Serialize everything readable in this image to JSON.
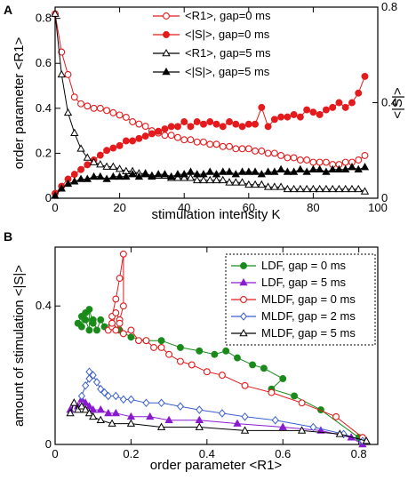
{
  "panels": {
    "a_label": "A",
    "b_label": "B"
  },
  "chart_data": [
    {
      "type": "line",
      "xlabel": "stimulation intensity K",
      "ylabel": "order parameter <R1>",
      "y2label": "<|S|>",
      "xlim": [
        0,
        100
      ],
      "ylim": [
        0,
        0.85
      ],
      "y2lim": [
        0,
        0.8
      ],
      "xticks": [
        "0",
        "20",
        "40",
        "60",
        "80",
        "100"
      ],
      "yticks": [
        "0",
        "0.2",
        "0.4",
        "0.6",
        "0.8"
      ],
      "y2ticks": [
        "0",
        "0.4",
        "0.8"
      ],
      "legend_position": "top-right",
      "series": [
        {
          "name": "<R1>, gap=0 ms",
          "axis": "left",
          "color": "#e41a1c",
          "marker": "open-circle",
          "x": [
            0,
            2,
            4,
            6,
            8,
            10,
            12,
            14,
            16,
            18,
            20,
            22,
            24,
            26,
            28,
            30,
            32,
            34,
            36,
            38,
            40,
            42,
            44,
            46,
            48,
            50,
            52,
            54,
            56,
            58,
            60,
            62,
            64,
            66,
            68,
            70,
            72,
            74,
            76,
            78,
            80,
            82,
            84,
            86,
            88,
            90,
            92,
            94,
            96
          ],
          "y": [
            0.82,
            0.65,
            0.55,
            0.45,
            0.42,
            0.41,
            0.4,
            0.4,
            0.39,
            0.38,
            0.37,
            0.36,
            0.34,
            0.33,
            0.32,
            0.3,
            0.29,
            0.28,
            0.28,
            0.27,
            0.26,
            0.26,
            0.25,
            0.25,
            0.24,
            0.24,
            0.23,
            0.23,
            0.22,
            0.22,
            0.22,
            0.21,
            0.21,
            0.2,
            0.2,
            0.19,
            0.18,
            0.18,
            0.17,
            0.17,
            0.16,
            0.16,
            0.16,
            0.15,
            0.15,
            0.16,
            0.16,
            0.17,
            0.19
          ]
        },
        {
          "name": "<|S|>, gap=0 ms",
          "axis": "right",
          "color": "#e41a1c",
          "marker": "filled-circle",
          "x": [
            0,
            2,
            4,
            6,
            8,
            10,
            12,
            14,
            16,
            18,
            20,
            22,
            24,
            26,
            28,
            30,
            32,
            34,
            36,
            38,
            40,
            42,
            44,
            46,
            48,
            50,
            52,
            54,
            56,
            58,
            60,
            62,
            64,
            66,
            68,
            70,
            72,
            74,
            76,
            78,
            80,
            82,
            84,
            86,
            88,
            90,
            92,
            94,
            96
          ],
          "y": [
            0.02,
            0.05,
            0.08,
            0.1,
            0.12,
            0.14,
            0.16,
            0.18,
            0.2,
            0.21,
            0.22,
            0.24,
            0.24,
            0.25,
            0.26,
            0.27,
            0.28,
            0.29,
            0.3,
            0.3,
            0.32,
            0.3,
            0.32,
            0.31,
            0.32,
            0.31,
            0.3,
            0.32,
            0.31,
            0.3,
            0.31,
            0.31,
            0.38,
            0.3,
            0.33,
            0.34,
            0.34,
            0.35,
            0.34,
            0.37,
            0.36,
            0.35,
            0.37,
            0.38,
            0.4,
            0.38,
            0.4,
            0.44,
            0.51
          ]
        },
        {
          "name": "<R1>, gap=5 ms",
          "axis": "left",
          "color": "#000000",
          "marker": "open-triangle",
          "x": [
            0,
            2,
            4,
            6,
            8,
            10,
            12,
            14,
            16,
            18,
            20,
            22,
            24,
            26,
            28,
            30,
            32,
            34,
            36,
            38,
            40,
            42,
            44,
            46,
            48,
            50,
            52,
            54,
            56,
            58,
            60,
            62,
            64,
            66,
            68,
            70,
            72,
            74,
            76,
            78,
            80,
            82,
            84,
            86,
            88,
            90,
            92,
            94,
            96
          ],
          "y": [
            0.82,
            0.55,
            0.38,
            0.29,
            0.22,
            0.18,
            0.16,
            0.15,
            0.14,
            0.14,
            0.13,
            0.12,
            0.12,
            0.11,
            0.11,
            0.1,
            0.1,
            0.1,
            0.09,
            0.09,
            0.09,
            0.09,
            0.08,
            0.08,
            0.08,
            0.08,
            0.08,
            0.07,
            0.07,
            0.07,
            0.06,
            0.06,
            0.06,
            0.05,
            0.05,
            0.05,
            0.04,
            0.04,
            0.04,
            0.04,
            0.04,
            0.04,
            0.04,
            0.04,
            0.04,
            0.04,
            0.04,
            0.04,
            0.03
          ]
        },
        {
          "name": "<|S|>, gap=5 ms",
          "axis": "right",
          "color": "#000000",
          "marker": "filled-triangle",
          "x": [
            0,
            2,
            4,
            6,
            8,
            10,
            12,
            14,
            16,
            18,
            20,
            22,
            24,
            26,
            28,
            30,
            32,
            34,
            36,
            38,
            40,
            42,
            44,
            46,
            48,
            50,
            52,
            54,
            56,
            58,
            60,
            62,
            64,
            66,
            68,
            70,
            72,
            74,
            76,
            78,
            80,
            82,
            84,
            86,
            88,
            90,
            92,
            94,
            96
          ],
          "y": [
            0.01,
            0.04,
            0.06,
            0.07,
            0.08,
            0.08,
            0.09,
            0.09,
            0.08,
            0.09,
            0.09,
            0.09,
            0.1,
            0.09,
            0.1,
            0.09,
            0.1,
            0.1,
            0.09,
            0.1,
            0.1,
            0.11,
            0.1,
            0.1,
            0.11,
            0.1,
            0.11,
            0.11,
            0.1,
            0.11,
            0.11,
            0.11,
            0.1,
            0.11,
            0.11,
            0.12,
            0.11,
            0.11,
            0.12,
            0.11,
            0.12,
            0.12,
            0.11,
            0.12,
            0.12,
            0.12,
            0.13,
            0.12,
            0.13
          ]
        }
      ]
    },
    {
      "type": "line",
      "xlabel": "order parameter <R1>",
      "ylabel": "amount of stimulation <|S|>",
      "xlim": [
        0,
        0.85
      ],
      "ylim": [
        0,
        0.57
      ],
      "xticks": [
        "0",
        "0.2",
        "0.4",
        "0.6",
        "0.8"
      ],
      "yticks": [
        "0",
        "0.4"
      ],
      "legend_position": "top-right",
      "series": [
        {
          "name": "LDF, gap = 0 ms",
          "color": "#1a8a1a",
          "marker": "filled-circle",
          "x": [
            0.06,
            0.07,
            0.07,
            0.08,
            0.08,
            0.09,
            0.09,
            0.1,
            0.1,
            0.11,
            0.12,
            0.13,
            0.15,
            0.17,
            0.2,
            0.24,
            0.28,
            0.33,
            0.38,
            0.42,
            0.45,
            0.48,
            0.52,
            0.55,
            0.6,
            0.57,
            0.63,
            0.7,
            0.8
          ],
          "y": [
            0.35,
            0.37,
            0.34,
            0.38,
            0.36,
            0.33,
            0.39,
            0.35,
            0.36,
            0.33,
            0.36,
            0.34,
            0.35,
            0.33,
            0.31,
            0.3,
            0.3,
            0.28,
            0.27,
            0.26,
            0.27,
            0.25,
            0.23,
            0.22,
            0.19,
            0.16,
            0.14,
            0.1,
            0.02
          ]
        },
        {
          "name": "LDF, gap = 5 ms",
          "color": "#8a1ad0",
          "marker": "filled-triangle",
          "x": [
            0.04,
            0.05,
            0.06,
            0.07,
            0.08,
            0.09,
            0.1,
            0.12,
            0.14,
            0.16,
            0.2,
            0.25,
            0.3,
            0.38,
            0.48,
            0.6,
            0.7,
            0.78,
            0.81
          ],
          "y": [
            0.1,
            0.12,
            0.11,
            0.13,
            0.12,
            0.11,
            0.1,
            0.1,
            0.09,
            0.09,
            0.08,
            0.08,
            0.07,
            0.07,
            0.06,
            0.05,
            0.04,
            0.02,
            0.0
          ]
        },
        {
          "name": "MLDF, gap = 0 ms",
          "color": "#e41a1c",
          "marker": "open-circle",
          "x": [
            0.14,
            0.15,
            0.16,
            0.17,
            0.18,
            0.18,
            0.17,
            0.16,
            0.15,
            0.15,
            0.16,
            0.17,
            0.18,
            0.2,
            0.22,
            0.24,
            0.26,
            0.28,
            0.3,
            0.33,
            0.36,
            0.4,
            0.44,
            0.5,
            0.57,
            0.65,
            0.74,
            0.81
          ],
          "y": [
            0.33,
            0.37,
            0.42,
            0.48,
            0.55,
            0.4,
            0.36,
            0.38,
            0.34,
            0.35,
            0.33,
            0.35,
            0.32,
            0.33,
            0.3,
            0.3,
            0.28,
            0.28,
            0.26,
            0.24,
            0.23,
            0.21,
            0.2,
            0.17,
            0.15,
            0.12,
            0.08,
            0.02
          ]
        },
        {
          "name": "MLDF, gap = 2 ms",
          "color": "#3a5fd0",
          "marker": "open-diamond",
          "x": [
            0.07,
            0.08,
            0.09,
            0.09,
            0.1,
            0.11,
            0.12,
            0.13,
            0.14,
            0.16,
            0.18,
            0.2,
            0.24,
            0.28,
            0.33,
            0.38,
            0.44,
            0.5,
            0.58,
            0.68,
            0.76,
            0.81
          ],
          "y": [
            0.14,
            0.17,
            0.19,
            0.21,
            0.2,
            0.18,
            0.16,
            0.15,
            0.14,
            0.14,
            0.13,
            0.13,
            0.12,
            0.12,
            0.11,
            0.1,
            0.09,
            0.08,
            0.07,
            0.05,
            0.03,
            0.01
          ]
        },
        {
          "name": "MLDF, gap = 5 ms",
          "color": "#000000",
          "marker": "open-triangle",
          "x": [
            0.04,
            0.05,
            0.06,
            0.07,
            0.08,
            0.09,
            0.1,
            0.12,
            0.15,
            0.2,
            0.28,
            0.38,
            0.5,
            0.65,
            0.75,
            0.82
          ],
          "y": [
            0.09,
            0.12,
            0.1,
            0.11,
            0.1,
            0.09,
            0.08,
            0.07,
            0.06,
            0.06,
            0.05,
            0.05,
            0.04,
            0.04,
            0.03,
            0.01
          ]
        }
      ]
    }
  ]
}
